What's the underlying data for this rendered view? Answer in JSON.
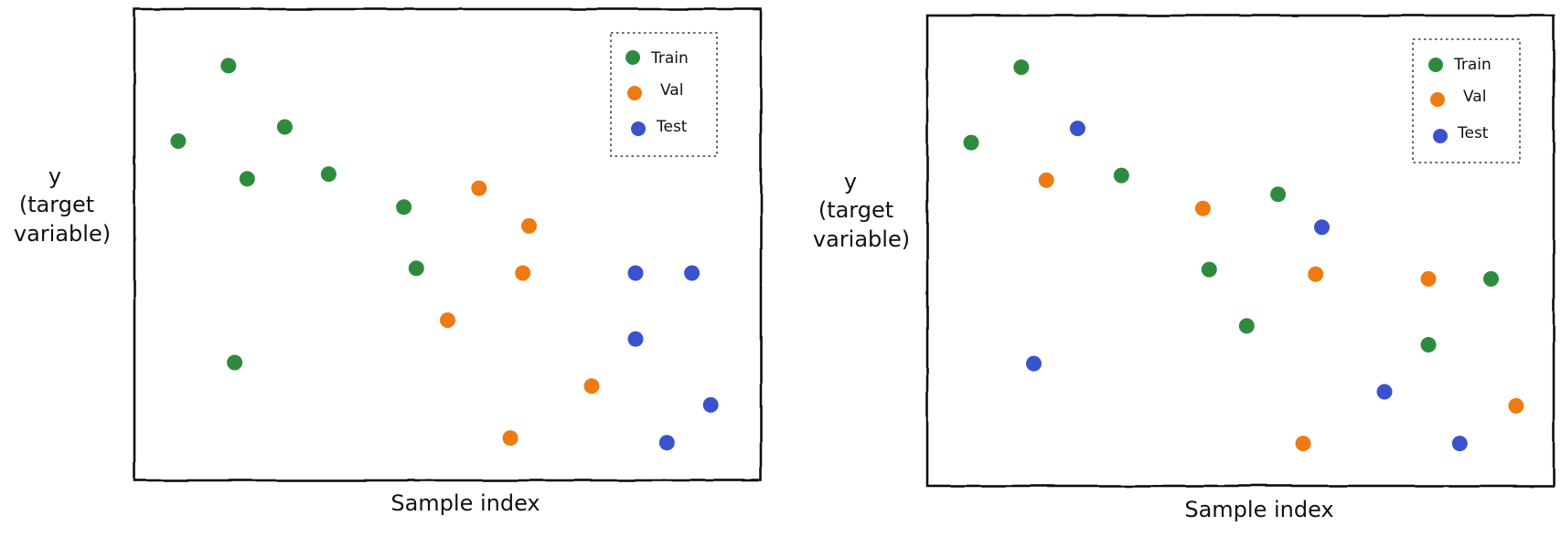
{
  "colors": {
    "train": "#2e8b3e",
    "val": "#ee7a12",
    "test": "#3a52cc"
  },
  "chart_data": [
    {
      "type": "scatter",
      "xlabel": "Sample index",
      "ylabel": [
        "y",
        "(target",
        "variable)"
      ],
      "xlim": [
        0,
        100
      ],
      "ylim": [
        0,
        100
      ],
      "legend": {
        "position": "top-right",
        "style": "dotted-box"
      },
      "series": [
        {
          "name": "Train",
          "color_key": "train",
          "points": [
            [
              15,
              88
            ],
            [
              7,
              72
            ],
            [
              24,
              75
            ],
            [
              18,
              64
            ],
            [
              31,
              65
            ],
            [
              43,
              58
            ],
            [
              45,
              45
            ],
            [
              16,
              25
            ]
          ]
        },
        {
          "name": "Val",
          "color_key": "val",
          "points": [
            [
              55,
              62
            ],
            [
              63,
              54
            ],
            [
              62,
              44
            ],
            [
              50,
              34
            ],
            [
              73,
              20
            ],
            [
              60,
              9
            ]
          ]
        },
        {
          "name": "Test",
          "color_key": "test",
          "points": [
            [
              80,
              44
            ],
            [
              89,
              44
            ],
            [
              80,
              30
            ],
            [
              92,
              16
            ],
            [
              85,
              8
            ]
          ]
        }
      ]
    },
    {
      "type": "scatter",
      "xlabel": "Sample index",
      "ylabel": [
        "y",
        "(target",
        "variable)"
      ],
      "xlim": [
        0,
        100
      ],
      "ylim": [
        0,
        100
      ],
      "legend": {
        "position": "top-right",
        "style": "dotted-box"
      },
      "series": [
        {
          "name": "Train",
          "color_key": "train",
          "points": [
            [
              15,
              89
            ],
            [
              7,
              73
            ],
            [
              31,
              66
            ],
            [
              56,
              62
            ],
            [
              45,
              46
            ],
            [
              51,
              34
            ],
            [
              80,
              30
            ],
            [
              90,
              44
            ]
          ]
        },
        {
          "name": "Val",
          "color_key": "val",
          "points": [
            [
              19,
              65
            ],
            [
              44,
              59
            ],
            [
              62,
              45
            ],
            [
              80,
              44
            ],
            [
              94,
              17
            ],
            [
              60,
              9
            ]
          ]
        },
        {
          "name": "Test",
          "color_key": "test",
          "points": [
            [
              24,
              76
            ],
            [
              63,
              55
            ],
            [
              17,
              26
            ],
            [
              73,
              20
            ],
            [
              85,
              9
            ]
          ]
        }
      ]
    }
  ]
}
